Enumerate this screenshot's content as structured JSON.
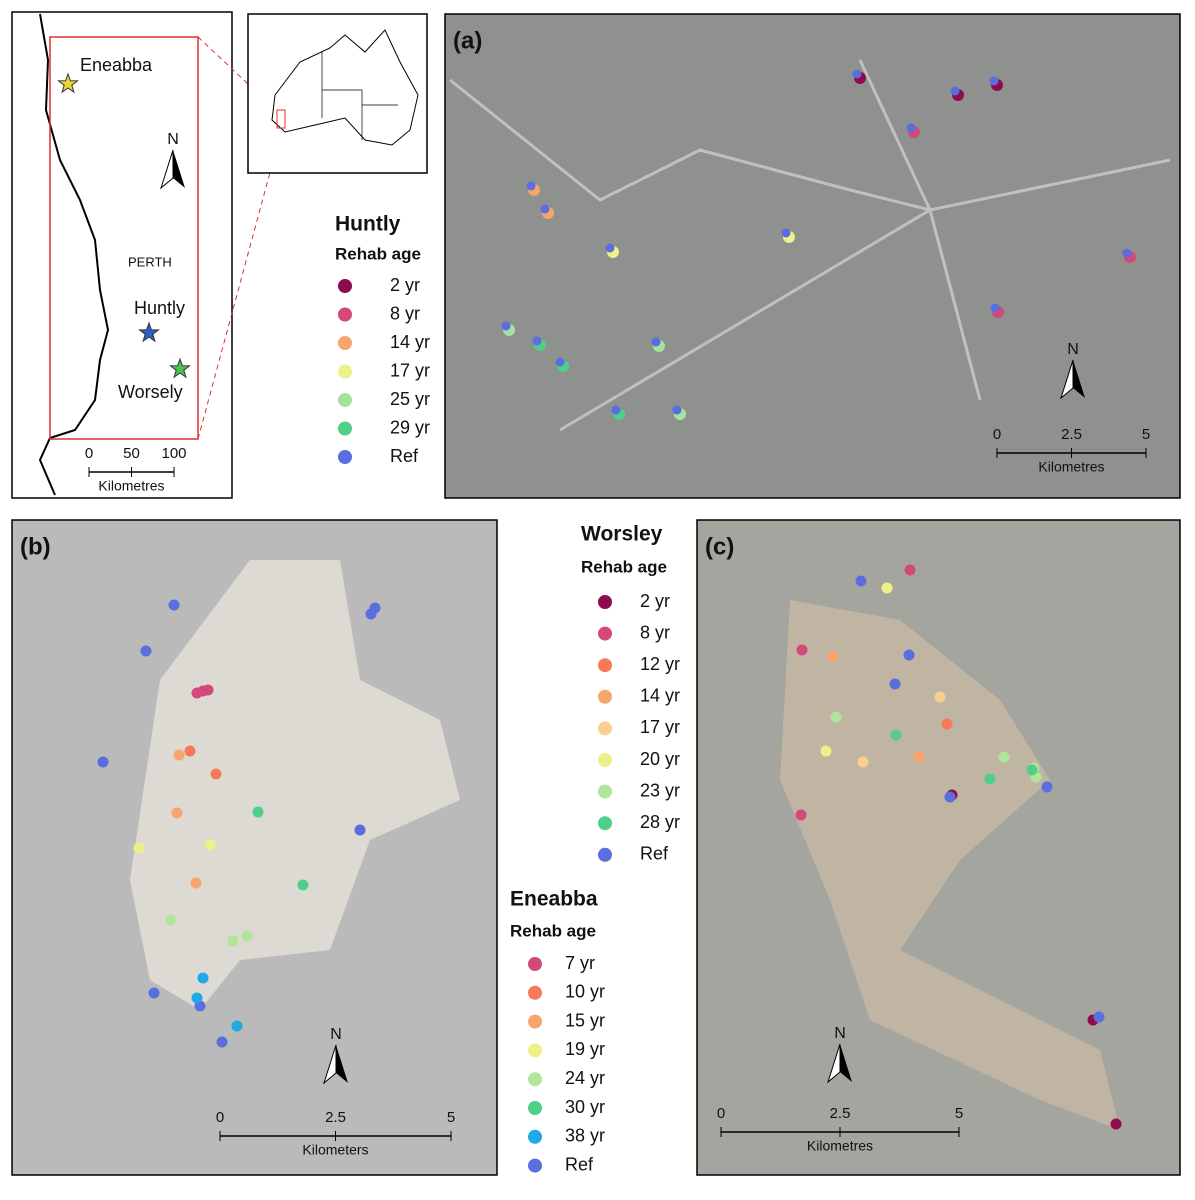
{
  "location_map": {
    "labels": {
      "eneabba": "Eneabba",
      "perth": "PERTH",
      "huntly": "Huntly",
      "worsely": "Worsely"
    },
    "north": "N",
    "scale": {
      "ticks": [
        "0",
        "50",
        "100"
      ],
      "unit": "Kilometres"
    }
  },
  "panels": [
    {
      "label": "(a)",
      "north": "N",
      "scale": {
        "ticks": [
          "0",
          "2.5",
          "5"
        ],
        "unit": "Kilometres"
      }
    },
    {
      "label": "(b)",
      "north": "N",
      "scale": {
        "ticks": [
          "0",
          "2.5",
          "5"
        ],
        "unit": "Kilometers"
      }
    },
    {
      "label": "(c)",
      "north": "N",
      "scale": {
        "ticks": [
          "0",
          "2.5",
          "5"
        ],
        "unit": "Kilometres"
      }
    }
  ],
  "legends": [
    {
      "title": "Huntly",
      "subtitle": "Rehab age",
      "items": [
        {
          "label": "2 yr",
          "color": "#8e0b4f"
        },
        {
          "label": "8 yr",
          "color": "#d34a7a"
        },
        {
          "label": "14 yr",
          "color": "#f6a56c"
        },
        {
          "label": "17 yr",
          "color": "#eef08a"
        },
        {
          "label": "25 yr",
          "color": "#a8e0a0"
        },
        {
          "label": "29 yr",
          "color": "#4fcf8a"
        },
        {
          "label": "Ref",
          "color": "#5a6ee0"
        }
      ]
    },
    {
      "title": "Worsley",
      "subtitle": "Rehab age",
      "items": [
        {
          "label": "2 yr",
          "color": "#8e0b4f"
        },
        {
          "label": "8 yr",
          "color": "#d34a7a"
        },
        {
          "label": "12 yr",
          "color": "#f47a5a"
        },
        {
          "label": "14 yr",
          "color": "#f7a56c"
        },
        {
          "label": "17 yr",
          "color": "#f8cf8f"
        },
        {
          "label": "20 yr",
          "color": "#eef08a"
        },
        {
          "label": "23 yr",
          "color": "#b0e59a"
        },
        {
          "label": "28 yr",
          "color": "#4fcf8a"
        },
        {
          "label": "Ref",
          "color": "#5a6ee0"
        }
      ]
    },
    {
      "title": "Eneabba",
      "subtitle": "Rehab age",
      "items": [
        {
          "label": "7 yr",
          "color": "#d34a7a"
        },
        {
          "label": "10 yr",
          "color": "#f47a5a"
        },
        {
          "label": "15 yr",
          "color": "#f7a56c"
        },
        {
          "label": "19 yr",
          "color": "#eef08a"
        },
        {
          "label": "24 yr",
          "color": "#b0e59a"
        },
        {
          "label": "30 yr",
          "color": "#4fcf8a"
        },
        {
          "label": "38 yr",
          "color": "#20a8e8"
        },
        {
          "label": "Ref",
          "color": "#5a6ee0"
        }
      ]
    }
  ]
}
